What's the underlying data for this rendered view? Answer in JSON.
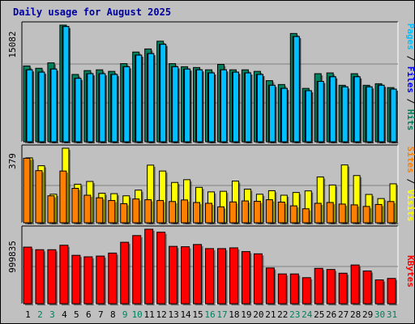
{
  "title": "Daily usage for August 2025",
  "colors": {
    "title": "#0000a0",
    "hits": "#00805c",
    "files": "#0000ff",
    "pages": "#00c0ff",
    "visits": "#ffff00",
    "sites": "#ff8000",
    "kbytes": "#ff0000",
    "weekday_label": "#000000",
    "weekend_label": "#00805c",
    "separator": "#808080"
  },
  "chart_data": [
    {
      "type": "bar",
      "panel": "hits-files-pages",
      "categories": [
        "1",
        "2",
        "3",
        "4",
        "5",
        "6",
        "7",
        "8",
        "9",
        "10",
        "11",
        "12",
        "13",
        "14",
        "15",
        "16",
        "17",
        "18",
        "19",
        "20",
        "21",
        "22",
        "23",
        "24",
        "25",
        "26",
        "27",
        "28",
        "29",
        "30",
        "31"
      ],
      "ymax_label": "15082",
      "ylim": [
        0,
        15082
      ],
      "series": [
        {
          "name": "Hits",
          "values": [
            9800,
            9500,
            10200,
            15082,
            8700,
            9200,
            9300,
            9100,
            10100,
            11600,
            12000,
            13000,
            10100,
            9700,
            9600,
            9300,
            10000,
            9300,
            9300,
            9100,
            7900,
            7400,
            14000,
            6900,
            8800,
            8900,
            7300,
            8800,
            7300,
            7500,
            7000
          ]
        },
        {
          "name": "Files",
          "values": [
            9300,
            9000,
            9400,
            14900,
            8200,
            8800,
            8800,
            8700,
            9700,
            11200,
            11400,
            12600,
            9700,
            9400,
            9300,
            8900,
            9300,
            9000,
            8900,
            8700,
            7300,
            6900,
            13600,
            6600,
            7800,
            8400,
            7100,
            8400,
            7100,
            7300,
            6800
          ]
        },
        {
          "name": "Pages",
          "values": [
            9300,
            9000,
            9400,
            14900,
            8200,
            8800,
            8800,
            8700,
            9700,
            11200,
            11400,
            12600,
            9700,
            9400,
            9300,
            8900,
            9300,
            9000,
            8900,
            8700,
            7300,
            6900,
            13600,
            6600,
            7800,
            8400,
            7100,
            8400,
            7100,
            7300,
            6800
          ]
        }
      ]
    },
    {
      "type": "bar",
      "panel": "visits-sites",
      "categories": [
        "1",
        "2",
        "3",
        "4",
        "5",
        "6",
        "7",
        "8",
        "9",
        "10",
        "11",
        "12",
        "13",
        "14",
        "15",
        "16",
        "17",
        "18",
        "19",
        "20",
        "21",
        "22",
        "23",
        "24",
        "25",
        "26",
        "27",
        "28",
        "29",
        "30",
        "31"
      ],
      "ymax_label": "379",
      "ylim": [
        0,
        379
      ],
      "series": [
        {
          "name": "Visits",
          "values": [
            330,
            290,
            145,
            379,
            196,
            210,
            150,
            148,
            137,
            166,
            293,
            263,
            205,
            219,
            180,
            157,
            160,
            212,
            171,
            145,
            163,
            140,
            154,
            162,
            233,
            192,
            294,
            240,
            144,
            123,
            198
          ]
        },
        {
          "name": "Sites",
          "values": [
            328,
            265,
            137,
            263,
            175,
            140,
            127,
            113,
            97,
            121,
            117,
            113,
            108,
            116,
            103,
            99,
            81,
            106,
            111,
            109,
            117,
            105,
            86,
            71,
            99,
            103,
            95,
            91,
            83,
            93,
            108
          ]
        }
      ]
    },
    {
      "type": "bar",
      "panel": "kbytes",
      "categories": [
        "1",
        "2",
        "3",
        "4",
        "5",
        "6",
        "7",
        "8",
        "9",
        "10",
        "11",
        "12",
        "13",
        "14",
        "15",
        "16",
        "17",
        "18",
        "19",
        "20",
        "21",
        "22",
        "23",
        "24",
        "25",
        "26",
        "27",
        "28",
        "29",
        "30",
        "31"
      ],
      "ymax_label": "999835",
      "ylim": [
        0,
        999835
      ],
      "series": [
        {
          "name": "KBytes",
          "values": [
            760000,
            725000,
            725000,
            785000,
            650000,
            630000,
            640000,
            680000,
            825000,
            915000,
            999835,
            960000,
            770000,
            765000,
            795000,
            740000,
            740000,
            750000,
            700000,
            670000,
            480000,
            400000,
            400000,
            350000,
            475000,
            460000,
            410000,
            520000,
            440000,
            320000,
            340000
          ]
        }
      ]
    }
  ],
  "x_labels": [
    "1",
    "2",
    "3",
    "4",
    "5",
    "6",
    "7",
    "8",
    "9",
    "10",
    "11",
    "12",
    "13",
    "14",
    "15",
    "16",
    "17",
    "18",
    "19",
    "20",
    "21",
    "22",
    "23",
    "24",
    "25",
    "26",
    "27",
    "28",
    "29",
    "30",
    "31"
  ],
  "weekend_days": [
    "2",
    "3",
    "9",
    "10",
    "16",
    "17",
    "23",
    "24",
    "30",
    "31"
  ],
  "right_labels": {
    "panel1": [
      {
        "text": "Pages",
        "color": "#00c0ff"
      },
      {
        "text": " / ",
        "color": "#000000"
      },
      {
        "text": "Files",
        "color": "#0000ff"
      },
      {
        "text": " / ",
        "color": "#000000"
      },
      {
        "text": "Hits",
        "color": "#00805c"
      }
    ],
    "panel2": [
      {
        "text": "Sites",
        "color": "#ff8000"
      },
      {
        "text": " / ",
        "color": "#000000"
      },
      {
        "text": "Visits",
        "color": "#ffff00"
      }
    ],
    "panel3": [
      {
        "text": "KBytes",
        "color": "#ff0000"
      }
    ]
  }
}
